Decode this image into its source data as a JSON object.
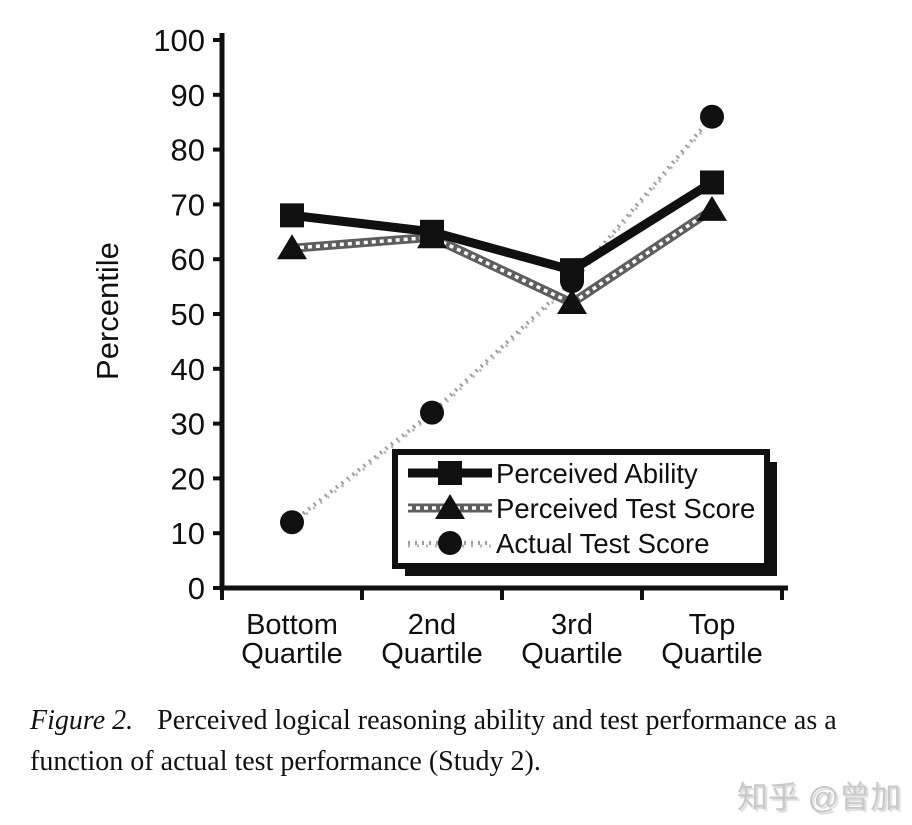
{
  "caption": {
    "label": "Figure 2.",
    "line1": "Perceived logical reasoning ability and test performance as a",
    "line2": "function of actual test performance (Study 2)."
  },
  "watermark": {
    "text": "知乎 @曾加"
  },
  "colors": {
    "ink": "#101010",
    "checkered_line": "#5e5e5e",
    "checkered_texture": "#ffffff",
    "stipple_line": "#9c9c9c",
    "stipple_line_2": "#b7b7b7",
    "watermark_gray": "#c9c9c9",
    "background": "#ffffff"
  },
  "chart_data": {
    "type": "line",
    "title": "",
    "xlabel": "",
    "ylabel": "Percentile",
    "ylim": [
      0,
      100
    ],
    "ytick_step": 10,
    "yticks": [
      0,
      10,
      20,
      30,
      40,
      50,
      60,
      70,
      80,
      90,
      100
    ],
    "grid": false,
    "legend_position": "inside-lower-right",
    "categories": [
      [
        "Bottom",
        "Quartile"
      ],
      [
        "2nd",
        "Quartile"
      ],
      [
        "3rd",
        "Quartile"
      ],
      [
        "Top",
        "Quartile"
      ]
    ],
    "series": [
      {
        "name": "Perceived Ability",
        "marker": "square",
        "line_style": "solid-black",
        "values": [
          68,
          65,
          58,
          74
        ]
      },
      {
        "name": "Perceived Test Score",
        "marker": "triangle",
        "line_style": "checkered-gray",
        "values": [
          62,
          64,
          52,
          69
        ]
      },
      {
        "name": "Actual Test Score",
        "marker": "circle",
        "line_style": "stippled-light",
        "values": [
          12,
          32,
          56,
          86
        ]
      }
    ]
  }
}
